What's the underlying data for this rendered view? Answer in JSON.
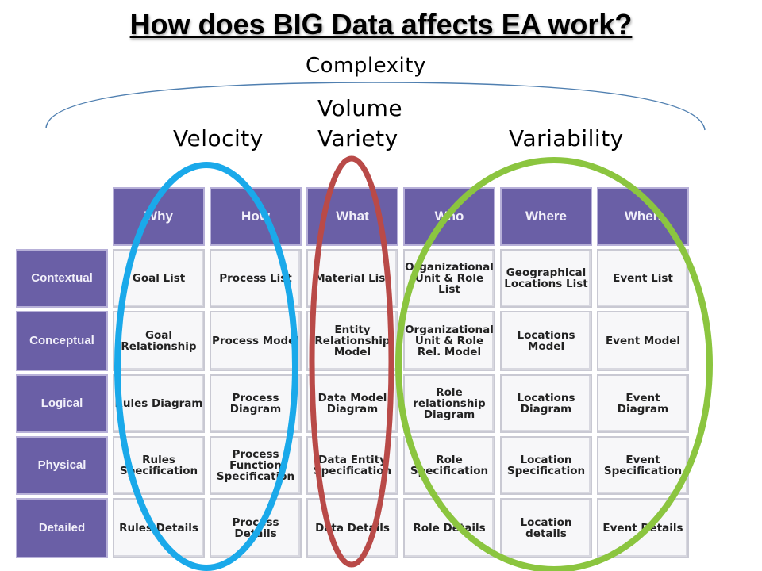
{
  "title": "How does BIG Data affects EA work?",
  "labels": {
    "complexity": "Complexity",
    "volume": "Volume",
    "velocity": "Velocity",
    "variety": "Variety",
    "variability": "Variability"
  },
  "colors": {
    "header_purple": "#6a5fa6",
    "velocity_ellipse": "#1aa9ea",
    "variety_ellipse": "#b94a48",
    "variability_ellipse": "#8bc53f",
    "arc": "#4f7fb0"
  },
  "table": {
    "columns": [
      "Why",
      "How",
      "What",
      "Who",
      "Where",
      "When"
    ],
    "rows": [
      {
        "label": "Contextual",
        "cells": [
          "Goal List",
          "Process List",
          "Material List",
          "Organizational Unit & Role List",
          "Geographical Locations List",
          "Event List"
        ]
      },
      {
        "label": "Conceptual",
        "cells": [
          "Goal Relationship",
          "Process Model",
          "Entity Relationship Model",
          "Organizational Unit & Role Rel. Model",
          "Locations Model",
          "Event Model"
        ]
      },
      {
        "label": "Logical",
        "cells": [
          "Rules Diagram",
          "Process Diagram",
          "Data Model Diagram",
          "Role relationship Diagram",
          "Locations Diagram",
          "Event Diagram"
        ]
      },
      {
        "label": "Physical",
        "cells": [
          "Rules Specification",
          "Process Function Specification",
          "Data Entity Specification",
          "Role Specification",
          "Location Specification",
          "Event Specification"
        ]
      },
      {
        "label": "Detailed",
        "cells": [
          "Rules Details",
          "Process Details",
          "Data Details",
          "Role Details",
          "Location details",
          "Event Details"
        ]
      }
    ]
  }
}
